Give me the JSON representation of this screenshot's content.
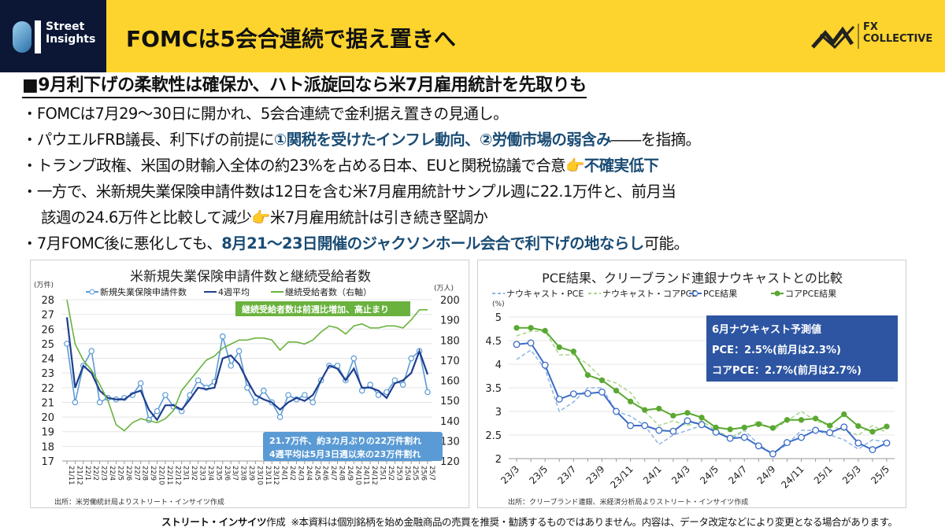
{
  "header": {
    "logo_text_1": "Street",
    "logo_text_2": "Insights",
    "title": "FOMCは5会合連続で据え置きへ",
    "partner_logo_1": "FX",
    "partner_logo_2": "COLLECTIVE",
    "brand_color": "#fdd42e",
    "logo_bg": "#0b1735"
  },
  "subheading": "■9月利下げの柔軟性は確保か、ハト派旋回なら米7月雇用統計を先取りも",
  "bullets": [
    [
      {
        "t": "・FOMCは7月29～30日に開かれ、5会合連続で金利据え置きの見通し。"
      }
    ],
    [
      {
        "t": "・パウエルFRB議長、利下げの前提に"
      },
      {
        "t": "①関税を受けたインフレ動向、②労働市場の弱含み",
        "hl": true
      },
      {
        "t": "――を指摘。"
      }
    ],
    [
      {
        "t": "・トランプ政権、米国の財輸入全体の約23%を占める日本、EUと関税協議で合意"
      },
      {
        "icon": "pointing-hand-icon"
      },
      {
        "t": "不確実低下",
        "hl": true
      }
    ],
    [
      {
        "t": "・一方で、米新規失業保険申請件数は12日を含む米7月雇用統計サンプル週に22.1万件と、前月当"
      }
    ],
    [
      {
        "t": "該週の24.6万件と比較して減少",
        "cont": true
      },
      {
        "icon": "pointing-hand-icon"
      },
      {
        "t": "米7月雇用統計は引き続き堅調か"
      }
    ],
    [
      {
        "t": "・7月FOMC後に悪化しても、"
      },
      {
        "t": "8月21～23日開催のジャクソンホール会合で利下げの地ならし",
        "hl": true
      },
      {
        "t": "可能。"
      }
    ]
  ],
  "highlight_color": "#1a4c74",
  "footer": {
    "author": "ストリート・インサイツ",
    "author_suffix": "作成",
    "disclaimer": "※本資料は個別銘柄を始め金融商品の売買を推奨・勧誘するものではありません。内容は、データ改定などにより変更となる場合があります。"
  },
  "chart_data": [
    {
      "type": "line",
      "title": "米新規失業保険申請件数と継続受給者数",
      "ylabel": "(万件)",
      "y2label": "(万人)",
      "ylim": [
        17,
        28
      ],
      "y2lim": [
        120,
        200
      ],
      "yticks": [
        17,
        18,
        19,
        20,
        21,
        22,
        23,
        24,
        25,
        26,
        27,
        28
      ],
      "y2ticks": [
        120,
        130,
        140,
        150,
        160,
        170,
        180,
        190,
        200
      ],
      "grid": true,
      "legend": "top",
      "x": [
        "21/11",
        "21/12",
        "22/1",
        "22/2",
        "22/3",
        "22/4",
        "22/5",
        "22/6",
        "22/7",
        "22/8",
        "22/9",
        "22/10",
        "22/11",
        "22/12",
        "23/1",
        "23/2",
        "23/3",
        "23/4",
        "23/5",
        "23/6",
        "23/7",
        "23/8",
        "23/9",
        "23/10",
        "23/11",
        "23/12",
        "24/1",
        "24/2",
        "24/3",
        "24/4",
        "24/5",
        "24/6",
        "24/7",
        "24/8",
        "24/9",
        "24/10",
        "24/11",
        "24/12",
        "25/1",
        "25/2",
        "25/3",
        "25/4",
        "25/5",
        "25/6",
        "25/7"
      ],
      "series": [
        {
          "name": "新規失業保険申請件数",
          "axis": "left",
          "color": "#5b9bd5",
          "marker": "open-circle",
          "values": [
            25.0,
            21.0,
            23.5,
            24.5,
            21.0,
            21.3,
            21.2,
            21.3,
            21.5,
            22.3,
            19.8,
            20.4,
            21.5,
            20.7,
            20.4,
            21.5,
            22.5,
            22.0,
            22.4,
            25.5,
            23.5,
            24.5,
            22.0,
            21.0,
            21.8,
            21.0,
            20.0,
            21.5,
            21.2,
            21.5,
            21.0,
            22.5,
            23.5,
            23.5,
            22.5,
            24.0,
            21.8,
            22.2,
            21.5,
            21.7,
            22.5,
            22.2,
            24.0,
            24.5,
            21.7
          ]
        },
        {
          "name": "4週平均",
          "axis": "left",
          "color": "#1f3f8f",
          "values": [
            26.8,
            22.0,
            23.5,
            23.0,
            21.8,
            21.3,
            21.2,
            21.2,
            21.6,
            21.8,
            20.5,
            19.8,
            20.8,
            20.8,
            20.5,
            21.2,
            22.0,
            21.9,
            22.0,
            24.0,
            24.2,
            23.6,
            22.5,
            21.5,
            21.2,
            21.0,
            20.5,
            21.0,
            21.3,
            21.1,
            21.5,
            22.5,
            23.5,
            23.3,
            22.5,
            23.3,
            22.0,
            22.0,
            21.8,
            21.3,
            22.3,
            22.5,
            23.0,
            24.5,
            22.9
          ]
        },
        {
          "name": "継続受給者数（右軸）",
          "axis": "right",
          "color": "#6ab23e",
          "values": [
            200,
            178,
            170,
            165,
            158,
            150,
            138,
            135,
            139,
            141,
            140,
            139,
            141,
            145,
            155,
            160,
            165,
            170,
            172,
            176,
            178,
            180,
            180,
            181,
            181,
            180,
            175,
            179,
            179,
            178,
            180,
            184,
            187,
            186,
            183,
            187,
            188,
            186,
            186,
            187,
            187,
            186,
            190,
            195,
            195
          ]
        }
      ],
      "annotations": [
        {
          "text": "継続受給者数は前週比増加、高止まり",
          "color": "#6ab23e"
        },
        {
          "text": "21.7万件、約3カ月ぶりの22万件割れ",
          "color": "#5b9bd5"
        },
        {
          "text": "4週平均は5月3日週以来の23万件割れ",
          "color": "#5b9bd5"
        }
      ],
      "source": "出所：米労働統計局よりストリート・インサイツ作成"
    },
    {
      "type": "line",
      "title": "PCE結果、クリーブランド連銀ナウキャストとの比較",
      "ylabel": "(%)",
      "ylim": [
        2,
        5
      ],
      "yticks": [
        2,
        2.5,
        3,
        3.5,
        4,
        4.5,
        5
      ],
      "grid": true,
      "legend": "top",
      "x": [
        "23/3",
        "23/4",
        "23/5",
        "23/6",
        "23/7",
        "23/8",
        "23/9",
        "23/10",
        "23/11",
        "23/12",
        "24/1",
        "24/2",
        "24/3",
        "24/4",
        "24/5",
        "24/6",
        "24/7",
        "24/8",
        "24/9",
        "24/10",
        "24/11",
        "24/12",
        "25/1",
        "25/2",
        "25/3",
        "25/4",
        "25/5"
      ],
      "xticklabels": [
        "23/3",
        "23/5",
        "23/7",
        "23/9",
        "23/11",
        "24/1",
        "24/3",
        "24/5",
        "24/7",
        "24/9",
        "24/11",
        "25/1",
        "25/3",
        "25/5"
      ],
      "series": [
        {
          "name": "ナウキャスト・PCE",
          "color": "#8fb3e3",
          "dash": true,
          "values": [
            4.1,
            4.3,
            3.9,
            3.0,
            3.2,
            3.5,
            3.5,
            3.0,
            2.9,
            2.7,
            2.3,
            2.5,
            2.6,
            2.7,
            2.6,
            2.4,
            2.6,
            2.3,
            2.1,
            2.3,
            2.6,
            2.6,
            2.5,
            2.4,
            2.2,
            2.4,
            2.35
          ]
        },
        {
          "name": "ナウキャスト・コアPCE",
          "color": "#a8d68a",
          "dash": true,
          "values": [
            4.6,
            4.7,
            4.7,
            4.2,
            4.2,
            4.0,
            3.7,
            3.6,
            3.4,
            3.0,
            2.7,
            2.8,
            2.7,
            2.8,
            2.6,
            2.45,
            2.6,
            2.8,
            2.6,
            2.8,
            3.0,
            2.8,
            2.7,
            2.6,
            2.5,
            2.7,
            2.55
          ]
        },
        {
          "name": "PCE結果",
          "color": "#3a6cc6",
          "marker": "open-circle",
          "values": [
            4.42,
            4.45,
            3.98,
            3.26,
            3.37,
            3.38,
            3.41,
            3.0,
            2.7,
            2.7,
            2.6,
            2.58,
            2.8,
            2.72,
            2.56,
            2.43,
            2.45,
            2.27,
            2.1,
            2.34,
            2.45,
            2.6,
            2.55,
            2.67,
            2.33,
            2.19,
            2.33
          ]
        },
        {
          "name": "コアPCE結果",
          "color": "#5aa832",
          "marker": "dot",
          "values": [
            4.77,
            4.77,
            4.71,
            4.36,
            4.27,
            3.77,
            3.66,
            3.44,
            3.21,
            3.03,
            3.06,
            2.91,
            2.97,
            2.87,
            2.66,
            2.62,
            2.66,
            2.73,
            2.65,
            2.82,
            2.82,
            2.85,
            2.7,
            2.94,
            2.69,
            2.57,
            2.68
          ]
        }
      ],
      "annotation": {
        "title": "6月ナウキャスト予測値",
        "line1": "PCE：2.5%(前月は2.3%)",
        "line2": "コアPCE：2.7%(前月は2.7%)",
        "color": "#2d55a2"
      },
      "source": "出所：クリーブランド連銀、米経済分析局よりストリート・インサイツ作成"
    }
  ]
}
